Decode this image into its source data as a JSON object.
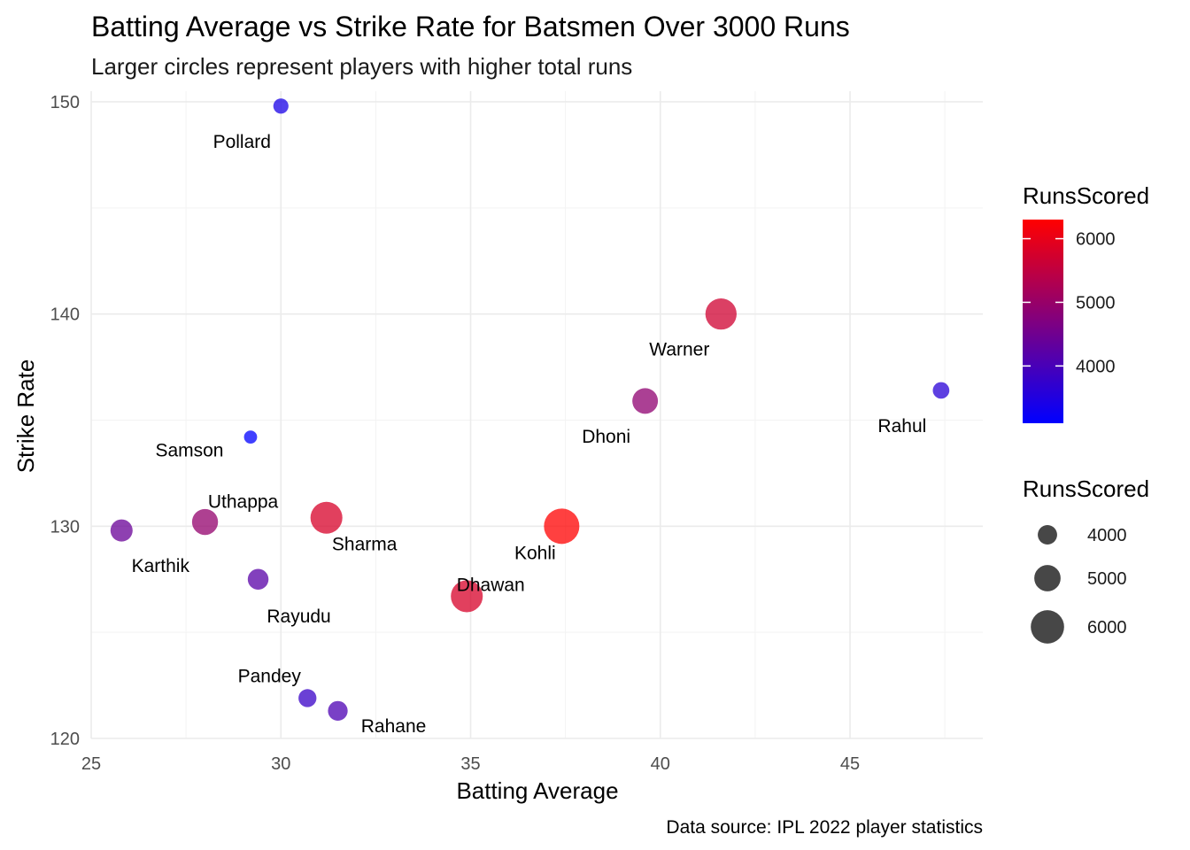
{
  "chart_data": {
    "type": "scatter",
    "title": "Batting Average vs Strike Rate for Batsmen Over 3000 Runs",
    "subtitle": "Larger circles represent players with higher total runs",
    "xlabel": "Batting Average",
    "ylabel": "Strike Rate",
    "caption": "Data source: IPL 2022 player statistics",
    "xlim": [
      25,
      48.5
    ],
    "ylim": [
      120,
      150.5
    ],
    "x_ticks": [
      25,
      30,
      35,
      40,
      45
    ],
    "y_ticks": [
      120,
      130,
      140,
      150
    ],
    "grid": true,
    "points": [
      {
        "name": "Pollard",
        "x": 30.0,
        "y": 149.8,
        "runs": 3400
      },
      {
        "name": "Warner",
        "x": 41.6,
        "y": 140.0,
        "runs": 5700
      },
      {
        "name": "Rahul",
        "x": 47.4,
        "y": 136.4,
        "runs": 3600
      },
      {
        "name": "Dhoni",
        "x": 39.6,
        "y": 135.9,
        "runs": 4900
      },
      {
        "name": "Samson",
        "x": 29.2,
        "y": 134.2,
        "runs": 3100
      },
      {
        "name": "Uthappa",
        "x": 28.0,
        "y": 130.2,
        "runs": 4950
      },
      {
        "name": "Karthik",
        "x": 25.8,
        "y": 129.8,
        "runs": 4400
      },
      {
        "name": "Sharma",
        "x": 31.2,
        "y": 130.4,
        "runs": 5800
      },
      {
        "name": "Kohli",
        "x": 37.4,
        "y": 130.0,
        "runs": 6300
      },
      {
        "name": "Rayudu",
        "x": 29.4,
        "y": 127.5,
        "runs": 4200
      },
      {
        "name": "Dhawan",
        "x": 34.9,
        "y": 126.7,
        "runs": 5800
      },
      {
        "name": "Pandey",
        "x": 30.7,
        "y": 121.9,
        "runs": 3800
      },
      {
        "name": "Rahane",
        "x": 31.5,
        "y": 121.3,
        "runs": 4050
      }
    ],
    "color_legend": {
      "title": "RunsScored",
      "low_color": "#0000ff",
      "high_color": "#ff0000",
      "min": 3100,
      "max": 6300,
      "breaks": [
        4000,
        5000,
        6000
      ]
    },
    "size_legend": {
      "title": "RunsScored",
      "breaks": [
        4000,
        5000,
        6000
      ],
      "color": "#333333"
    },
    "legend_position": "right"
  }
}
